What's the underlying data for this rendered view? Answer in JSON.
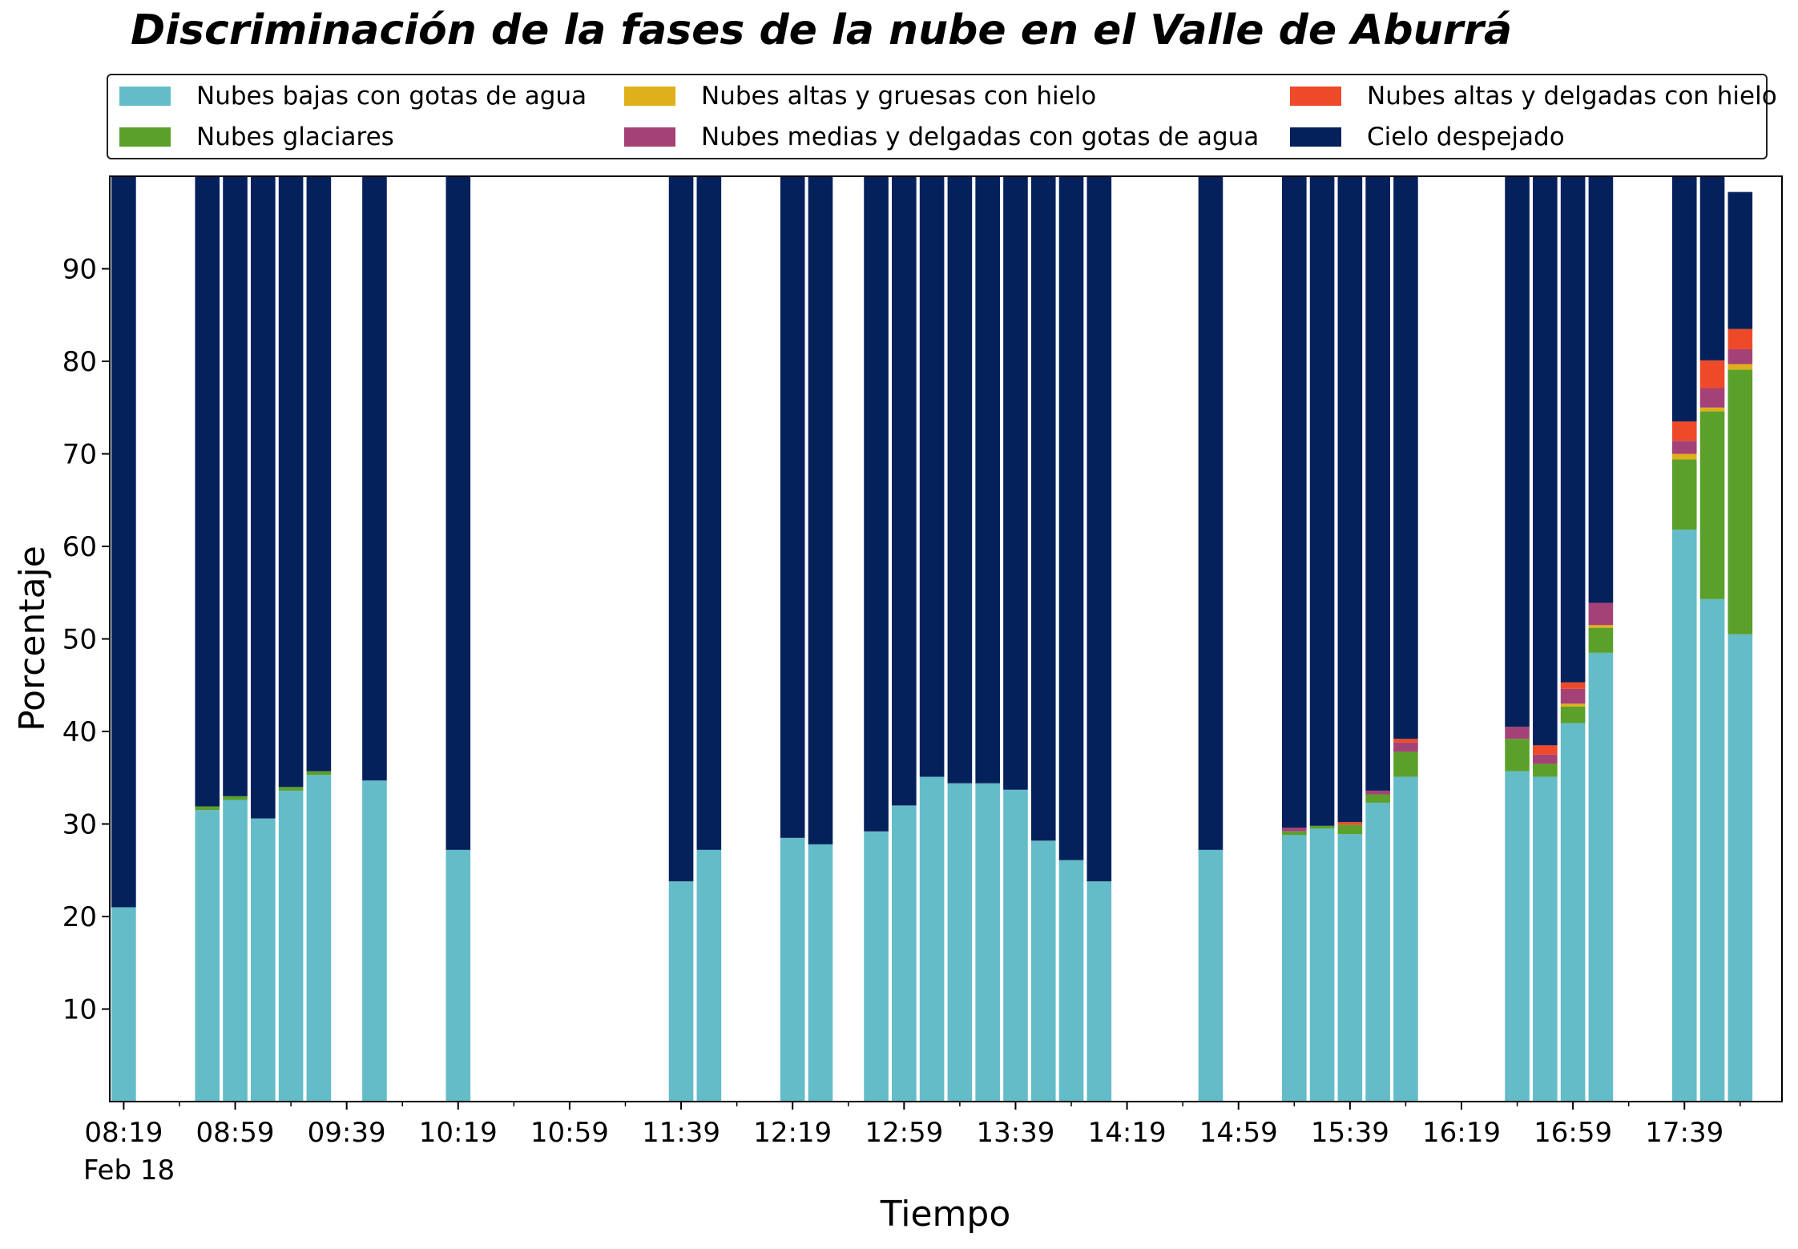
{
  "chart_data": {
    "type": "bar",
    "stacked": true,
    "title": "Discriminación de la fases de la nube en el Valle de Aburrá",
    "xlabel": "Tiempo",
    "ylabel": "Porcentaje",
    "ylim": [
      0,
      100
    ],
    "y_ticks": [
      10,
      20,
      30,
      40,
      50,
      60,
      70,
      80,
      90
    ],
    "x_ticks": [
      "08:19",
      "08:59",
      "09:39",
      "10:19",
      "10:59",
      "11:39",
      "12:19",
      "12:59",
      "13:39",
      "14:19",
      "14:59",
      "15:39",
      "16:19",
      "16:59",
      "17:39"
    ],
    "x_date_label": "Feb 18",
    "x_unit": "minutes",
    "x_start": "08:19",
    "x_end": "18:09",
    "bar_interval_minutes": 10,
    "grid": false,
    "legend": {
      "placement": "top",
      "columns": 3
    },
    "series": [
      {
        "name": "Nubes bajas con gotas de agua",
        "color": "#64bcc8"
      },
      {
        "name": "Nubes glaciares",
        "color": "#5ba02b"
      },
      {
        "name": "Nubes altas y gruesas con hielo",
        "color": "#e0b01a"
      },
      {
        "name": "Nubes medias y delgadas con gotas de agua",
        "color": "#a44277"
      },
      {
        "name": "Nubes altas y delgadas con hielo",
        "color": "#ee4a2a"
      },
      {
        "name": "Cielo despejado",
        "color": "#05215c"
      }
    ],
    "bars": [
      {
        "time": "08:19",
        "values": [
          21.0,
          0,
          0,
          0,
          0,
          79.0
        ]
      },
      {
        "time": "08:49",
        "values": [
          31.5,
          0.4,
          0,
          0,
          0,
          68.1
        ]
      },
      {
        "time": "08:59",
        "values": [
          32.6,
          0.4,
          0,
          0,
          0,
          67.0
        ]
      },
      {
        "time": "09:09",
        "values": [
          30.6,
          0,
          0,
          0,
          0,
          69.4
        ]
      },
      {
        "time": "09:19",
        "values": [
          33.6,
          0.4,
          0,
          0,
          0,
          66.0
        ]
      },
      {
        "time": "09:29",
        "values": [
          35.3,
          0.4,
          0,
          0,
          0,
          64.3
        ]
      },
      {
        "time": "09:49",
        "values": [
          34.7,
          0,
          0,
          0,
          0,
          65.3
        ]
      },
      {
        "time": "10:19",
        "values": [
          27.2,
          0,
          0,
          0,
          0,
          72.8
        ]
      },
      {
        "time": "11:39",
        "values": [
          23.8,
          0,
          0,
          0,
          0,
          76.2
        ]
      },
      {
        "time": "11:49",
        "values": [
          27.2,
          0,
          0,
          0,
          0,
          72.8
        ]
      },
      {
        "time": "12:19",
        "values": [
          28.5,
          0,
          0,
          0,
          0,
          71.5
        ]
      },
      {
        "time": "12:29",
        "values": [
          27.8,
          0,
          0,
          0,
          0,
          72.2
        ]
      },
      {
        "time": "12:49",
        "values": [
          29.2,
          0,
          0,
          0,
          0,
          70.8
        ]
      },
      {
        "time": "12:59",
        "values": [
          32.0,
          0,
          0,
          0,
          0,
          68.0
        ]
      },
      {
        "time": "13:09",
        "values": [
          35.1,
          0,
          0,
          0,
          0,
          64.9
        ]
      },
      {
        "time": "13:19",
        "values": [
          34.4,
          0,
          0,
          0,
          0,
          65.6
        ]
      },
      {
        "time": "13:29",
        "values": [
          34.4,
          0,
          0,
          0,
          0,
          65.6
        ]
      },
      {
        "time": "13:39",
        "values": [
          33.7,
          0,
          0,
          0,
          0,
          66.3
        ]
      },
      {
        "time": "13:49",
        "values": [
          28.2,
          0,
          0,
          0,
          0,
          71.8
        ]
      },
      {
        "time": "13:59",
        "values": [
          26.1,
          0,
          0,
          0,
          0,
          73.9
        ]
      },
      {
        "time": "14:09",
        "values": [
          23.8,
          0,
          0,
          0,
          0,
          76.2
        ]
      },
      {
        "time": "14:49",
        "values": [
          27.2,
          0,
          0,
          0,
          0,
          72.8
        ]
      },
      {
        "time": "15:19",
        "values": [
          28.8,
          0.4,
          0,
          0.4,
          0,
          70.4
        ]
      },
      {
        "time": "15:29",
        "values": [
          29.5,
          0.3,
          0,
          0,
          0,
          70.2
        ]
      },
      {
        "time": "15:39",
        "values": [
          28.9,
          1.0,
          0,
          0,
          0.3,
          69.8
        ]
      },
      {
        "time": "15:49",
        "values": [
          32.3,
          0.9,
          0,
          0.4,
          0,
          66.4
        ]
      },
      {
        "time": "15:59",
        "values": [
          35.1,
          2.7,
          0,
          1.0,
          0.4,
          60.8
        ]
      },
      {
        "time": "16:39",
        "values": [
          35.7,
          3.5,
          0,
          1.3,
          0,
          59.5
        ]
      },
      {
        "time": "16:49",
        "values": [
          35.1,
          1.4,
          0,
          1.0,
          1.0,
          61.5
        ]
      },
      {
        "time": "16:59",
        "values": [
          40.9,
          1.8,
          0.3,
          1.6,
          0.7,
          54.7
        ]
      },
      {
        "time": "17:09",
        "values": [
          48.5,
          2.7,
          0.3,
          2.4,
          0,
          46.1
        ]
      },
      {
        "time": "17:39",
        "values": [
          61.8,
          7.6,
          0.6,
          1.4,
          2.1,
          26.5
        ]
      },
      {
        "time": "17:49",
        "values": [
          54.3,
          20.3,
          0.4,
          2.1,
          3.0,
          19.9
        ]
      },
      {
        "time": "17:59",
        "values": [
          50.5,
          28.6,
          0.6,
          1.6,
          2.2,
          14.8
        ]
      }
    ]
  }
}
